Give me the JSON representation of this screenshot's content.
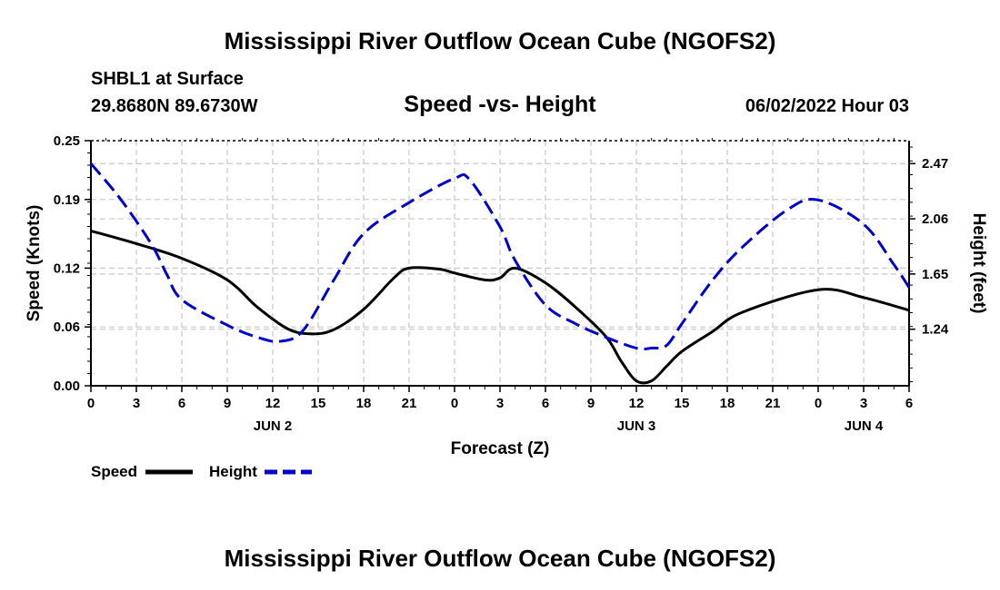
{
  "header": {
    "title": "Mississippi River Outflow Ocean Cube (NGOFS2)",
    "station": "SHBL1 at Surface",
    "coords": "29.8680N  89.6730W",
    "date": "06/02/2022 Hour 03",
    "footer_title": "Mississippi River Outflow Ocean Cube (NGOFS2)"
  },
  "colors": {
    "speed": "#000000",
    "height": "#0000cc",
    "grid": "#c8c8c8"
  },
  "chart_data": {
    "type": "line",
    "title": "Speed -vs- Height",
    "xlabel": "Forecast (Z)",
    "ylabel": "Speed (Knots)",
    "y2label": "Height (feet)",
    "xlim": [
      0,
      54
    ],
    "x_ticks": [
      "0",
      "3",
      "6",
      "9",
      "12",
      "15",
      "18",
      "21",
      "0",
      "3",
      "6",
      "9",
      "12",
      "15",
      "18",
      "21",
      "0",
      "3",
      "6"
    ],
    "date_labels": [
      {
        "hour": 12,
        "text": "JUN 2"
      },
      {
        "hour": 36,
        "text": "JUN 3"
      },
      {
        "hour": 51,
        "text": "JUN 4"
      }
    ],
    "ylim": [
      0,
      0.25
    ],
    "y_ticks": [
      0.0,
      0.06,
      0.12,
      0.19,
      0.25
    ],
    "y_tick_labels": [
      "0.00",
      "0.06",
      "0.12",
      "0.19",
      "0.25"
    ],
    "y2lim": [
      0.82,
      2.64
    ],
    "y2_ticks": [
      1.24,
      1.65,
      2.06,
      2.47
    ],
    "y2_tick_labels": [
      "1.24",
      "1.65",
      "2.06",
      "2.47"
    ],
    "legend": [
      "Speed",
      "Height"
    ],
    "series": [
      {
        "name": "Speed",
        "axis": "left",
        "x": [
          0,
          3,
          6,
          9,
          11,
          13,
          14.5,
          16,
          18,
          20,
          21,
          23,
          24,
          26,
          27,
          28,
          30,
          32,
          34,
          35,
          36,
          37,
          38,
          39,
          41,
          43,
          48,
          51,
          54
        ],
        "values": [
          0.158,
          0.145,
          0.13,
          0.108,
          0.08,
          0.058,
          0.053,
          0.057,
          0.078,
          0.11,
          0.12,
          0.119,
          0.115,
          0.108,
          0.11,
          0.12,
          0.105,
          0.08,
          0.05,
          0.025,
          0.005,
          0.005,
          0.02,
          0.035,
          0.055,
          0.075,
          0.098,
          0.09,
          0.077
        ]
      },
      {
        "name": "Height",
        "axis": "right",
        "x": [
          0,
          2,
          4,
          5,
          6,
          9,
          11,
          12.5,
          14,
          16,
          18,
          21,
          24,
          25,
          27,
          28,
          30,
          32,
          34,
          36,
          37,
          38,
          39,
          41,
          43,
          46,
          48,
          51,
          53,
          54
        ],
        "values": [
          2.47,
          2.2,
          1.87,
          1.65,
          1.46,
          1.27,
          1.18,
          1.15,
          1.23,
          1.6,
          1.95,
          2.18,
          2.36,
          2.35,
          2.0,
          1.75,
          1.42,
          1.28,
          1.18,
          1.1,
          1.1,
          1.12,
          1.28,
          1.6,
          1.85,
          2.13,
          2.2,
          2.02,
          1.72,
          1.55
        ]
      }
    ]
  }
}
